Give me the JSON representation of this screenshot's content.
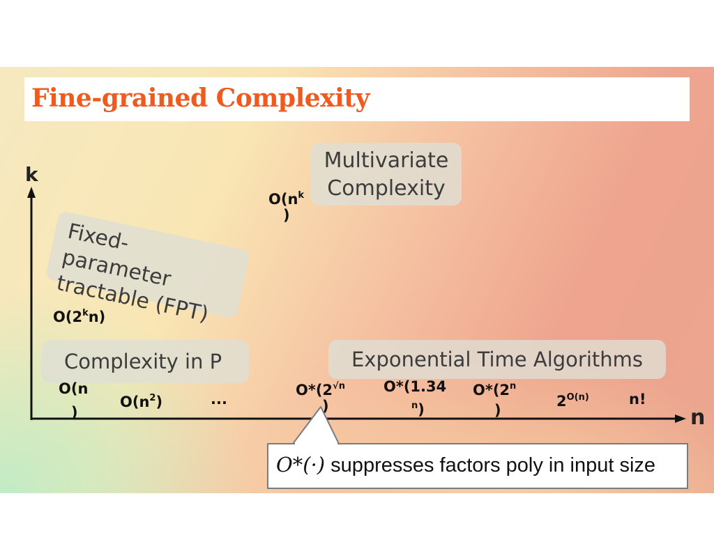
{
  "title": "Fine-grained Complexity",
  "axes": {
    "y_label": "k",
    "x_label": "n"
  },
  "regions": {
    "multivariate": [
      "Multivariate",
      "Complexity"
    ],
    "fpt": [
      "Fixed-parameter",
      "tractable (FPT)"
    ],
    "in_p": "Complexity in P",
    "exponential": "Exponential Time Algorithms"
  },
  "labels": {
    "onk": {
      "base": "O(n",
      "sup": "k",
      "close": ")"
    },
    "o2kn": {
      "base": "O(2",
      "sup": "k",
      "rest": "n)"
    },
    "on": {
      "line1": "O(n",
      "line2": ")"
    },
    "on2": {
      "base": "O(n",
      "sup": "2",
      "close": ")"
    },
    "dots": "...",
    "o2sqrtn": {
      "base": "O*(2",
      "sup": "√n",
      "close": ")"
    },
    "o134n": {
      "base": "O*(1.34",
      "sup": "n",
      "close": ")"
    },
    "o2n": {
      "base": "O*(2",
      "sup": "n",
      "close": ")"
    },
    "two_on": {
      "base": "2",
      "sup": "O(n)"
    },
    "nfact": "n!"
  },
  "note": {
    "math": "O*(·)",
    "text": " suppresses factors poly in input size"
  },
  "colors": {
    "title": "#f05a1e",
    "axis": "#111111"
  }
}
